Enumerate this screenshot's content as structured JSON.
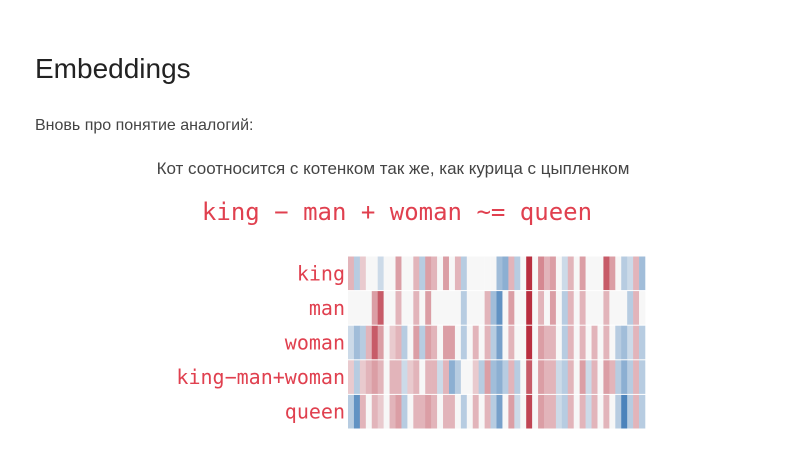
{
  "header": {
    "title": "Embeddings",
    "subtitle": "Вновь про понятие аналогий:"
  },
  "sentence": "Кот соотносится с котенком так же, как курица с цыпленком",
  "chart_data": {
    "type": "heatmap",
    "title": "king − man + woman ~= queen",
    "categories": [
      "king",
      "man",
      "woman",
      "king−man+woman",
      "queen"
    ],
    "colormap": [
      "#2166ac",
      "#f7f7f7",
      "#b2182b"
    ],
    "zlim": [
      -1,
      1
    ],
    "values": [
      [
        0.3,
        -0.3,
        0.2,
        0,
        0,
        -0.2,
        0,
        0,
        0.4,
        0,
        0,
        0.3,
        -0.3,
        0.4,
        0.3,
        0,
        0.4,
        0,
        0.3,
        -0.3,
        0,
        0,
        0,
        0,
        0,
        -0.4,
        -0.5,
        0.3,
        -0.3,
        0,
        0.9,
        0,
        0.5,
        0.3,
        0.4,
        0,
        -0.2,
        0.3,
        0,
        0.4,
        0,
        0,
        0,
        0.7,
        0.4,
        0,
        -0.3,
        -0.2,
        0.3,
        -0.4
      ],
      [
        0,
        0,
        0,
        0,
        0.4,
        0.7,
        0,
        0,
        0.3,
        0,
        0,
        0.3,
        0,
        0.4,
        0,
        0,
        0,
        0,
        0,
        -0.3,
        0,
        0,
        0,
        0.3,
        -0.4,
        -0.7,
        0,
        0.4,
        0,
        0,
        0.9,
        0,
        0.3,
        0,
        0.4,
        0,
        -0.3,
        0.3,
        0,
        0.3,
        0,
        0,
        0,
        0.3,
        0,
        0,
        0,
        -0.3,
        0.3,
        0
      ],
      [
        -0.2,
        -0.4,
        -0.3,
        0.3,
        0.7,
        0.4,
        0,
        0.2,
        0.3,
        -0.3,
        0,
        0.4,
        -0.3,
        0.4,
        0.3,
        0,
        0.4,
        0.4,
        0,
        -0.3,
        0,
        0.3,
        0,
        0.3,
        -0.3,
        -0.6,
        0,
        0.3,
        0,
        0,
        0.9,
        0,
        0.4,
        0.3,
        0.3,
        0,
        -0.3,
        0.3,
        0,
        0.3,
        0,
        0.3,
        0,
        0.3,
        0,
        -0.3,
        -0.4,
        -0.2,
        0.3,
        -0.3
      ],
      [
        0.2,
        -0.3,
        0.2,
        0.3,
        0.4,
        0.3,
        0,
        0.3,
        0.3,
        -0.2,
        0.2,
        0.3,
        0,
        0.3,
        0.3,
        -0.2,
        0.3,
        -0.5,
        -0.3,
        0,
        0,
        0.2,
        -0.3,
        0.4,
        -0.4,
        -0.5,
        -0.3,
        0.3,
        -0.3,
        0,
        0.7,
        0,
        0.4,
        0.3,
        0.3,
        -0.2,
        -0.3,
        0.3,
        0,
        0.4,
        -0.2,
        0.3,
        0,
        0.4,
        0.3,
        -0.3,
        -0.5,
        -0.3,
        0.3,
        -0.3
      ],
      [
        -0.3,
        -0.7,
        0.3,
        0,
        0.3,
        0.2,
        0,
        0.3,
        0.4,
        -0.3,
        0,
        0.3,
        0.3,
        0.4,
        0.3,
        0,
        0.3,
        0.3,
        0,
        -0.3,
        0,
        0.3,
        0,
        0.3,
        -0.3,
        -0.6,
        0,
        0.4,
        -0.2,
        0,
        0.8,
        0,
        0.4,
        0.3,
        0.3,
        -0.2,
        -0.3,
        0.3,
        0,
        0.3,
        -0.2,
        0.3,
        0,
        0.3,
        0,
        -0.3,
        -0.8,
        -0.3,
        0.3,
        -0.3
      ]
    ]
  }
}
